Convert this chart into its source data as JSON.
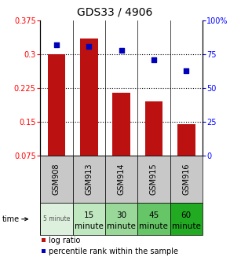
{
  "title": "GDS33 / 4906",
  "categories": [
    "GSM908",
    "GSM913",
    "GSM914",
    "GSM915",
    "GSM916"
  ],
  "time_labels_line1": [
    "5 minute",
    "15",
    "30",
    "45",
    "60"
  ],
  "time_labels_line2": [
    "",
    "minute",
    "minute",
    "minute",
    "minute"
  ],
  "bar_tops": [
    0.3,
    0.335,
    0.215,
    0.195,
    0.145
  ],
  "bar_bottom": 0.075,
  "scatter_values": [
    82,
    81,
    78,
    71,
    63
  ],
  "bar_color": "#bb1111",
  "scatter_color": "#0000bb",
  "ylim_left": [
    0.075,
    0.375
  ],
  "ylim_right": [
    0,
    100
  ],
  "yticks_left": [
    0.075,
    0.15,
    0.225,
    0.3,
    0.375
  ],
  "ytick_labels_left": [
    "0.075",
    "0.15",
    "0.225",
    "0.3",
    "0.375"
  ],
  "yticks_right": [
    0,
    25,
    50,
    75,
    100
  ],
  "ytick_labels_right": [
    "0",
    "25",
    "50",
    "75",
    "100%"
  ],
  "time_bg_colors": [
    "#ddf0dd",
    "#c0e8c0",
    "#99d899",
    "#66c566",
    "#22aa22"
  ],
  "gsm_bg_color": "#c8c8c8",
  "legend_bar_label": "log ratio",
  "legend_scatter_label": "percentile rank within the sample",
  "time_label": "time",
  "dotted_yticks": [
    0.15,
    0.225,
    0.3
  ],
  "fig_width": 2.93,
  "fig_height": 3.27
}
